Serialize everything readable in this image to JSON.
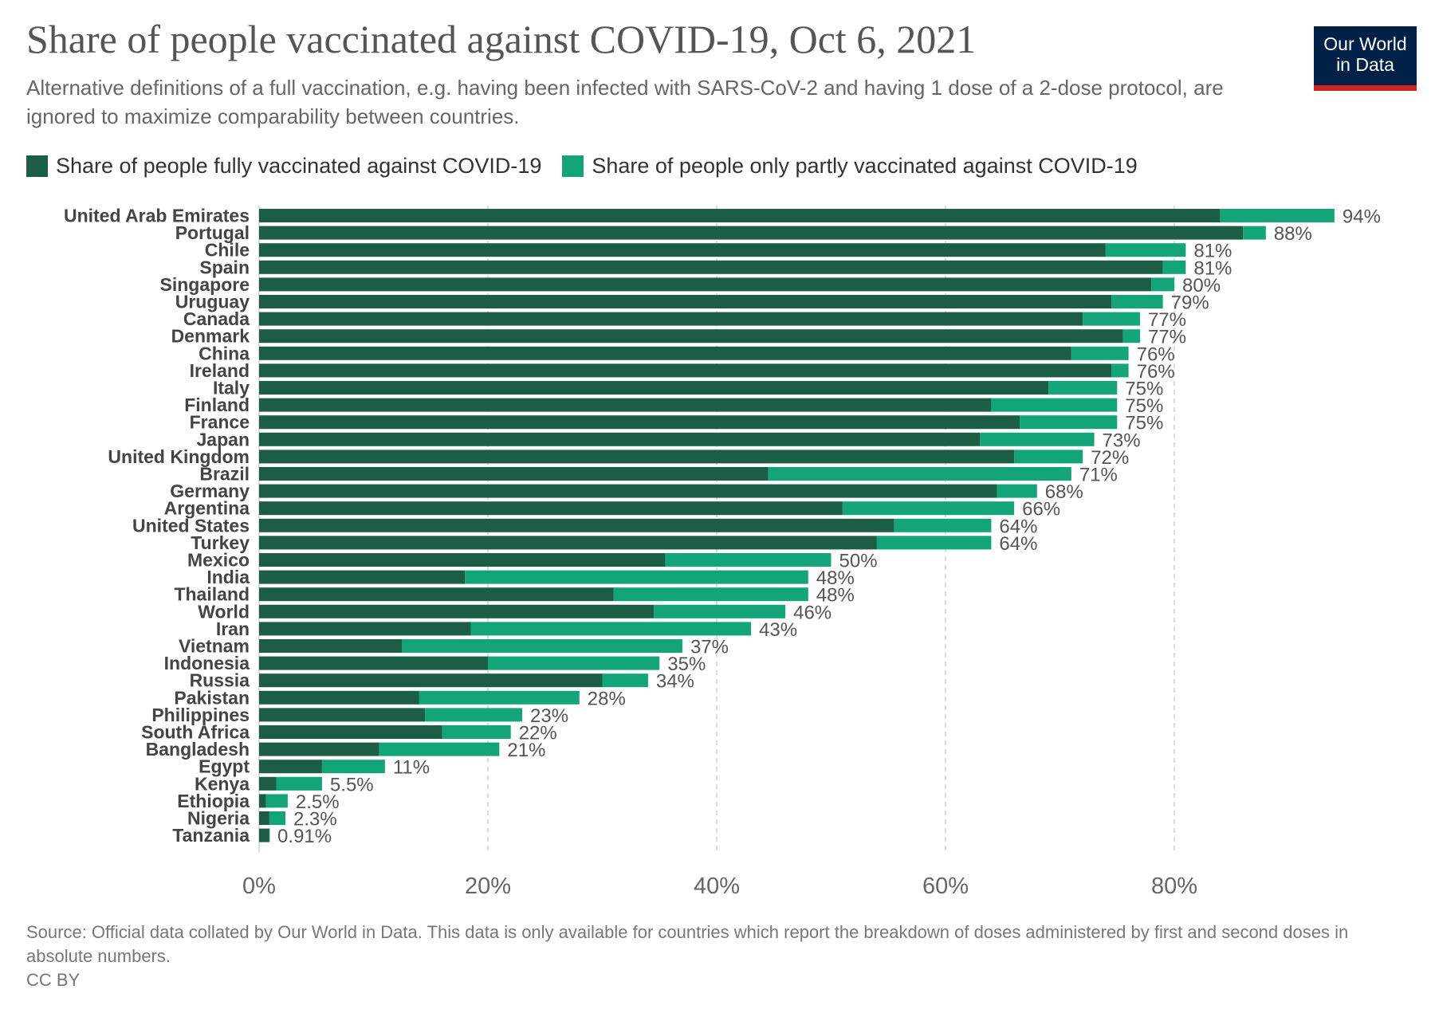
{
  "header": {
    "title": "Share of people vaccinated against COVID-19, Oct 6, 2021",
    "subtitle": "Alternative definitions of a full vaccination, e.g. having been infected with SARS-CoV-2 and having 1 dose of a 2-dose protocol, are ignored to maximize comparability between countries."
  },
  "logo": {
    "line1": "Our World",
    "line2": "in Data",
    "background": "#002147",
    "accent": "#ce261e"
  },
  "footer": {
    "source": "Source: Official data collated by Our World in Data. This data is only available for countries which report the breakdown of doses administered by first and second doses in absolute numbers.",
    "license": "CC BY"
  },
  "chart_data": {
    "type": "bar",
    "orientation": "horizontal",
    "stacked": true,
    "title": "Share of people vaccinated against COVID-19, Oct 6, 2021",
    "xlim": [
      0,
      100
    ],
    "x_ticks": [
      "0%",
      "20%",
      "40%",
      "60%",
      "80%"
    ],
    "x_tick_values": [
      0,
      20,
      40,
      60,
      80
    ],
    "grid": "vertical dashed",
    "legend_position": "top-left",
    "categories": [
      "United Arab Emirates",
      "Portugal",
      "Chile",
      "Spain",
      "Singapore",
      "Uruguay",
      "Canada",
      "Denmark",
      "China",
      "Ireland",
      "Italy",
      "Finland",
      "France",
      "Japan",
      "United Kingdom",
      "Brazil",
      "Germany",
      "Argentina",
      "United States",
      "Turkey",
      "Mexico",
      "India",
      "Thailand",
      "World",
      "Iran",
      "Vietnam",
      "Indonesia",
      "Russia",
      "Pakistan",
      "Philippines",
      "South Africa",
      "Bangladesh",
      "Egypt",
      "Kenya",
      "Ethiopia",
      "Nigeria",
      "Tanzania"
    ],
    "series": [
      {
        "name": "Share of people fully vaccinated against COVID-19",
        "color": "#1b5e45",
        "values": [
          84,
          86,
          74,
          79,
          78,
          74.5,
          72,
          75.5,
          71,
          74.5,
          69,
          64,
          66.5,
          63,
          66,
          44.5,
          64.5,
          51,
          55.5,
          54,
          35.5,
          18,
          31,
          34.5,
          18.5,
          12.5,
          20,
          30,
          14,
          14.5,
          16,
          10.5,
          5.5,
          1.5,
          0.6,
          0.9,
          0.9
        ]
      },
      {
        "name": "Share of people only partly vaccinated against COVID-19",
        "color": "#13a577",
        "values": [
          10,
          2,
          7,
          2,
          2,
          4.5,
          5,
          1.5,
          5,
          1.5,
          6,
          11,
          8.5,
          10,
          6,
          26.5,
          3.5,
          15,
          8.5,
          10,
          14.5,
          30,
          17,
          11.5,
          24.5,
          24.5,
          15,
          4,
          14,
          8.5,
          6,
          10.5,
          5.5,
          4,
          1.9,
          1.4,
          0.01
        ]
      }
    ],
    "total_labels": [
      "94%",
      "88%",
      "81%",
      "81%",
      "80%",
      "79%",
      "77%",
      "77%",
      "76%",
      "76%",
      "75%",
      "75%",
      "75%",
      "73%",
      "72%",
      "71%",
      "68%",
      "66%",
      "64%",
      "64%",
      "50%",
      "48%",
      "48%",
      "46%",
      "43%",
      "37%",
      "35%",
      "34%",
      "28%",
      "23%",
      "22%",
      "21%",
      "11%",
      "5.5%",
      "2.5%",
      "2.3%",
      "0.91%"
    ]
  }
}
